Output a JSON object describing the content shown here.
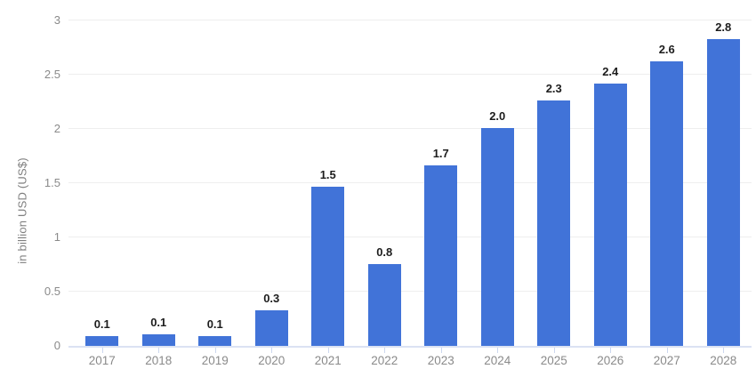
{
  "chart_data": {
    "type": "bar",
    "title": "",
    "xlabel": "",
    "ylabel": "in billion USD (US$)",
    "categories": [
      "2017",
      "2018",
      "2019",
      "2020",
      "2021",
      "2022",
      "2023",
      "2024",
      "2025",
      "2026",
      "2027",
      "2028"
    ],
    "values": [
      0.1,
      0.1,
      0.1,
      0.3,
      1.5,
      0.8,
      1.7,
      2.0,
      2.3,
      2.4,
      2.6,
      2.8
    ],
    "value_labels": [
      "0.1",
      "0.1",
      "0.1",
      "0.3",
      "1.5",
      "0.8",
      "1.7",
      "2.0",
      "2.3",
      "2.4",
      "2.6",
      "2.8"
    ],
    "bar_heights_precise": [
      0.09,
      0.11,
      0.09,
      0.33,
      1.47,
      0.75,
      1.66,
      2.01,
      2.26,
      2.42,
      2.62,
      2.83
    ],
    "y_ticks": [
      "0",
      "0.5",
      "1",
      "1.5",
      "2",
      "2.5",
      "3"
    ],
    "ylim": [
      0,
      3
    ],
    "y_tick_step": 0.5,
    "grid": true,
    "legend_visible": false,
    "colors": {
      "bar": "#4173d8",
      "grid": "#eeeeee",
      "axis_line": "#dbe2f3",
      "tick": "#ccd7ee",
      "tick_label": "#8a8a8a",
      "value_label": "#1d1d1d",
      "axis_title": "#7f7f7f",
      "background": "#ffffff"
    }
  }
}
